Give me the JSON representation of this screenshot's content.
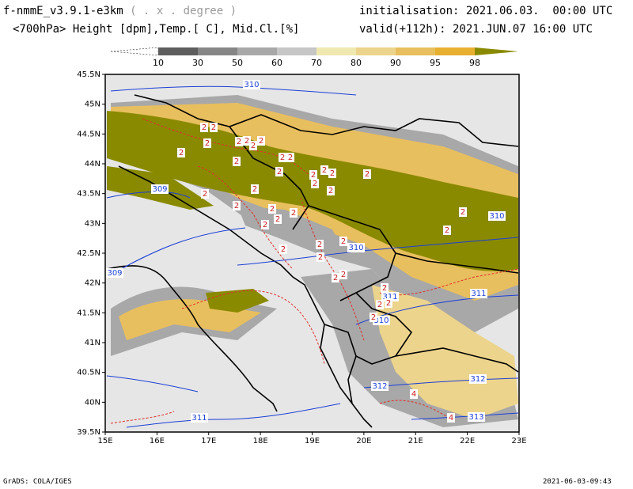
{
  "header": {
    "model": "f-nmmE_v3.9.1-e3km",
    "unit_note": "( . x . degree )",
    "init_label": "initialisation: 2021.06.03.  00:00 UTC",
    "fields": "<700hPa> Height [dpm],Temp.[ C], Mid.Cl.[%]",
    "valid_label": "valid(+112h): 2021.JUN.07 16:00 UTC"
  },
  "colorbar": {
    "ticks": [
      "10",
      "30",
      "50",
      "60",
      "70",
      "80",
      "90",
      "95",
      "98"
    ],
    "colors": [
      "#ffffff",
      "#5e5e5e",
      "#868686",
      "#a8a8a8",
      "#c6c6c6",
      "#efe8b0",
      "#ecd48c",
      "#e8bf5e",
      "#e8b030",
      "#8a8a00"
    ]
  },
  "map": {
    "lat_labels": [
      "45.5N",
      "45N",
      "44.5N",
      "44N",
      "43.5N",
      "43N",
      "42.5N",
      "42N",
      "41.5N",
      "41N",
      "40.5N",
      "40N",
      "39.5N"
    ],
    "lon_labels": [
      "15E",
      "16E",
      "17E",
      "18E",
      "19E",
      "20E",
      "21E",
      "22E",
      "23E"
    ],
    "height_contours": [
      "310",
      "309",
      "309",
      "310",
      "310",
      "311",
      "311",
      "310",
      "312",
      "312",
      "313",
      "311"
    ],
    "temp_labels": [
      "2",
      "2",
      "2",
      "2",
      "2",
      "2",
      "2",
      "2",
      "2",
      "2",
      "2",
      "2",
      "2",
      "2",
      "2",
      "2",
      "2",
      "2",
      "2",
      "2",
      "2",
      "2",
      "2",
      "2",
      "2",
      "2",
      "2",
      "2",
      "2",
      "2",
      "2",
      "2",
      "2",
      "2",
      "2",
      "2",
      "2",
      "4",
      "4"
    ],
    "colors": {
      "background": "#e6e6e6",
      "cloud_high": "#8a8a00",
      "cloud_mid": "#e8bf5e",
      "cloud_low": "#a8a8a8",
      "height_contour": "#1c3fd6",
      "temp_contour": "#e0302a",
      "coast": "#000000"
    }
  },
  "footer": {
    "left": "GrADS: COLA/IGES",
    "right": "2021-06-03-09:43"
  }
}
